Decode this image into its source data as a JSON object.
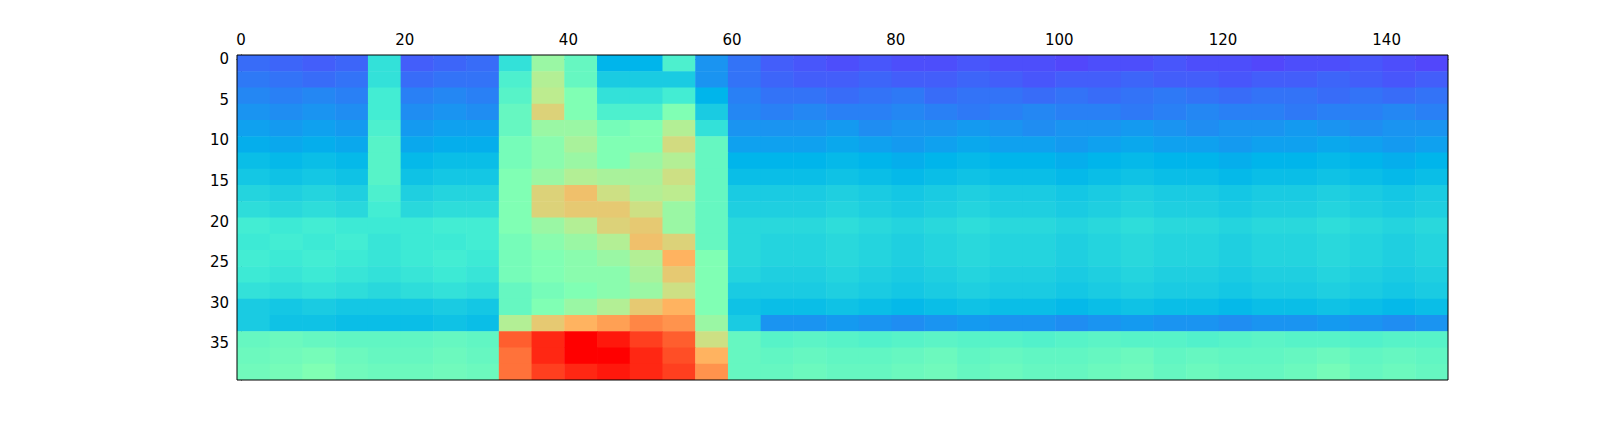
{
  "chart_data": {
    "type": "heatmap",
    "xlim": [
      -0.5,
      147.5
    ],
    "ylim": [
      39.5,
      -0.5
    ],
    "xticks": [
      0,
      20,
      40,
      60,
      80,
      100,
      120,
      140
    ],
    "yticks": [
      0,
      5,
      10,
      15,
      20,
      25,
      30,
      35
    ],
    "color_range": [
      0,
      1
    ],
    "x_edges": [
      -0.5,
      3.5,
      7.5,
      11.5,
      15.5,
      19.5,
      23.5,
      27.5,
      31.5,
      35.5,
      39.5,
      43.5,
      47.5,
      51.5,
      55.5,
      59.5,
      63.5,
      67.5,
      71.5,
      75.5,
      79.5,
      83.5,
      87.5,
      91.5,
      95.5,
      99.5,
      103.5,
      107.5,
      111.5,
      115.5,
      119.5,
      123.5,
      127.5,
      131.5,
      135.5,
      139.5,
      143.5,
      147.5
    ],
    "y_edges": [
      -0.5,
      1.5,
      3.5,
      5.5,
      7.5,
      9.5,
      11.5,
      13.5,
      15.5,
      17.5,
      19.5,
      21.5,
      23.5,
      25.5,
      27.5,
      29.5,
      31.5,
      33.5,
      35.5,
      37.5,
      39.5
    ],
    "cells": [
      [
        0.14,
        0.13,
        0.12,
        0.13,
        0.35,
        0.12,
        0.13,
        0.14,
        0.35,
        0.55,
        0.45,
        0.25,
        0.25,
        0.4,
        0.2,
        0.15,
        0.12,
        0.11,
        0.1,
        0.11,
        0.1,
        0.1,
        0.11,
        0.1,
        0.1,
        0.09,
        0.1,
        0.1,
        0.11,
        0.1,
        0.1,
        0.09,
        0.1,
        0.1,
        0.11,
        0.1,
        0.09
      ],
      [
        0.16,
        0.15,
        0.14,
        0.15,
        0.35,
        0.14,
        0.15,
        0.15,
        0.4,
        0.6,
        0.45,
        0.3,
        0.3,
        0.3,
        0.2,
        0.15,
        0.13,
        0.12,
        0.12,
        0.13,
        0.12,
        0.12,
        0.13,
        0.12,
        0.11,
        0.12,
        0.12,
        0.13,
        0.12,
        0.12,
        0.11,
        0.12,
        0.12,
        0.13,
        0.12,
        0.11,
        0.12
      ],
      [
        0.18,
        0.17,
        0.18,
        0.17,
        0.38,
        0.17,
        0.18,
        0.17,
        0.42,
        0.62,
        0.5,
        0.35,
        0.35,
        0.38,
        0.25,
        0.17,
        0.15,
        0.15,
        0.14,
        0.15,
        0.16,
        0.14,
        0.15,
        0.15,
        0.14,
        0.15,
        0.14,
        0.15,
        0.16,
        0.15,
        0.14,
        0.15,
        0.15,
        0.14,
        0.15,
        0.14,
        0.15
      ],
      [
        0.2,
        0.19,
        0.2,
        0.19,
        0.38,
        0.19,
        0.2,
        0.19,
        0.45,
        0.68,
        0.5,
        0.4,
        0.4,
        0.5,
        0.3,
        0.18,
        0.17,
        0.18,
        0.17,
        0.17,
        0.18,
        0.17,
        0.16,
        0.17,
        0.18,
        0.17,
        0.17,
        0.16,
        0.17,
        0.18,
        0.17,
        0.17,
        0.16,
        0.17,
        0.17,
        0.18,
        0.17
      ],
      [
        0.22,
        0.21,
        0.22,
        0.21,
        0.4,
        0.21,
        0.22,
        0.22,
        0.45,
        0.55,
        0.55,
        0.48,
        0.5,
        0.6,
        0.35,
        0.2,
        0.2,
        0.2,
        0.21,
        0.19,
        0.2,
        0.2,
        0.21,
        0.2,
        0.19,
        0.2,
        0.2,
        0.21,
        0.2,
        0.19,
        0.2,
        0.2,
        0.21,
        0.2,
        0.19,
        0.2,
        0.2
      ],
      [
        0.24,
        0.23,
        0.24,
        0.23,
        0.42,
        0.23,
        0.24,
        0.24,
        0.48,
        0.52,
        0.58,
        0.5,
        0.5,
        0.66,
        0.45,
        0.22,
        0.22,
        0.22,
        0.23,
        0.22,
        0.21,
        0.22,
        0.23,
        0.22,
        0.22,
        0.21,
        0.22,
        0.23,
        0.22,
        0.22,
        0.21,
        0.22,
        0.22,
        0.23,
        0.22,
        0.21,
        0.22
      ],
      [
        0.27,
        0.26,
        0.27,
        0.26,
        0.42,
        0.26,
        0.27,
        0.27,
        0.48,
        0.52,
        0.55,
        0.5,
        0.55,
        0.6,
        0.45,
        0.25,
        0.25,
        0.25,
        0.26,
        0.25,
        0.24,
        0.25,
        0.26,
        0.25,
        0.25,
        0.24,
        0.25,
        0.26,
        0.25,
        0.25,
        0.24,
        0.25,
        0.25,
        0.26,
        0.25,
        0.24,
        0.25
      ],
      [
        0.29,
        0.28,
        0.29,
        0.28,
        0.42,
        0.28,
        0.29,
        0.29,
        0.5,
        0.55,
        0.6,
        0.58,
        0.58,
        0.65,
        0.45,
        0.27,
        0.27,
        0.27,
        0.28,
        0.27,
        0.26,
        0.27,
        0.28,
        0.27,
        0.27,
        0.26,
        0.27,
        0.28,
        0.27,
        0.27,
        0.26,
        0.27,
        0.27,
        0.28,
        0.27,
        0.26,
        0.27
      ],
      [
        0.32,
        0.31,
        0.32,
        0.31,
        0.4,
        0.31,
        0.32,
        0.32,
        0.5,
        0.68,
        0.72,
        0.65,
        0.6,
        0.62,
        0.45,
        0.3,
        0.3,
        0.3,
        0.31,
        0.3,
        0.29,
        0.3,
        0.31,
        0.3,
        0.3,
        0.29,
        0.3,
        0.31,
        0.3,
        0.3,
        0.29,
        0.3,
        0.3,
        0.31,
        0.3,
        0.29,
        0.3
      ],
      [
        0.34,
        0.33,
        0.34,
        0.33,
        0.38,
        0.33,
        0.34,
        0.34,
        0.5,
        0.68,
        0.7,
        0.7,
        0.65,
        0.55,
        0.45,
        0.31,
        0.31,
        0.31,
        0.32,
        0.31,
        0.3,
        0.31,
        0.32,
        0.31,
        0.31,
        0.3,
        0.31,
        0.32,
        0.31,
        0.31,
        0.3,
        0.31,
        0.31,
        0.32,
        0.31,
        0.3,
        0.31
      ],
      [
        0.38,
        0.37,
        0.38,
        0.37,
        0.37,
        0.37,
        0.38,
        0.38,
        0.5,
        0.55,
        0.6,
        0.68,
        0.7,
        0.55,
        0.45,
        0.33,
        0.33,
        0.33,
        0.34,
        0.33,
        0.32,
        0.33,
        0.34,
        0.33,
        0.33,
        0.32,
        0.33,
        0.34,
        0.33,
        0.33,
        0.32,
        0.33,
        0.33,
        0.34,
        0.33,
        0.32,
        0.33
      ],
      [
        0.37,
        0.38,
        0.37,
        0.38,
        0.36,
        0.37,
        0.37,
        0.38,
        0.48,
        0.52,
        0.55,
        0.6,
        0.72,
        0.68,
        0.45,
        0.33,
        0.32,
        0.32,
        0.33,
        0.32,
        0.31,
        0.32,
        0.33,
        0.32,
        0.32,
        0.31,
        0.32,
        0.33,
        0.32,
        0.32,
        0.31,
        0.32,
        0.32,
        0.33,
        0.32,
        0.31,
        0.32
      ],
      [
        0.38,
        0.37,
        0.38,
        0.37,
        0.36,
        0.37,
        0.38,
        0.37,
        0.48,
        0.5,
        0.52,
        0.55,
        0.6,
        0.75,
        0.5,
        0.33,
        0.32,
        0.32,
        0.33,
        0.32,
        0.31,
        0.32,
        0.33,
        0.32,
        0.32,
        0.31,
        0.32,
        0.33,
        0.32,
        0.32,
        0.31,
        0.32,
        0.32,
        0.33,
        0.32,
        0.31,
        0.32
      ],
      [
        0.37,
        0.36,
        0.37,
        0.36,
        0.35,
        0.36,
        0.37,
        0.36,
        0.48,
        0.5,
        0.52,
        0.52,
        0.58,
        0.7,
        0.5,
        0.32,
        0.31,
        0.31,
        0.32,
        0.31,
        0.3,
        0.31,
        0.32,
        0.31,
        0.31,
        0.3,
        0.31,
        0.32,
        0.31,
        0.31,
        0.3,
        0.31,
        0.31,
        0.32,
        0.31,
        0.3,
        0.31
      ],
      [
        0.35,
        0.34,
        0.35,
        0.34,
        0.33,
        0.34,
        0.35,
        0.34,
        0.45,
        0.48,
        0.5,
        0.52,
        0.55,
        0.65,
        0.5,
        0.3,
        0.3,
        0.3,
        0.31,
        0.3,
        0.29,
        0.3,
        0.31,
        0.3,
        0.3,
        0.29,
        0.3,
        0.31,
        0.3,
        0.3,
        0.29,
        0.3,
        0.3,
        0.31,
        0.3,
        0.29,
        0.3
      ],
      [
        0.3,
        0.29,
        0.3,
        0.29,
        0.29,
        0.29,
        0.3,
        0.29,
        0.45,
        0.5,
        0.55,
        0.6,
        0.7,
        0.75,
        0.5,
        0.28,
        0.27,
        0.27,
        0.28,
        0.27,
        0.26,
        0.27,
        0.28,
        0.27,
        0.27,
        0.26,
        0.27,
        0.28,
        0.27,
        0.27,
        0.26,
        0.27,
        0.27,
        0.28,
        0.27,
        0.26,
        0.27
      ],
      [
        0.3,
        0.28,
        0.28,
        0.27,
        0.27,
        0.27,
        0.28,
        0.27,
        0.6,
        0.7,
        0.75,
        0.78,
        0.82,
        0.8,
        0.55,
        0.3,
        0.2,
        0.2,
        0.21,
        0.2,
        0.19,
        0.2,
        0.21,
        0.2,
        0.2,
        0.19,
        0.2,
        0.21,
        0.2,
        0.2,
        0.19,
        0.2,
        0.2,
        0.21,
        0.2,
        0.19,
        0.2
      ],
      [
        0.45,
        0.46,
        0.45,
        0.44,
        0.44,
        0.44,
        0.45,
        0.44,
        0.88,
        0.95,
        1.0,
        0.97,
        0.92,
        0.88,
        0.65,
        0.45,
        0.42,
        0.43,
        0.42,
        0.41,
        0.42,
        0.43,
        0.42,
        0.42,
        0.41,
        0.42,
        0.43,
        0.42,
        0.42,
        0.41,
        0.42,
        0.43,
        0.42,
        0.42,
        0.41,
        0.42,
        0.42
      ],
      [
        0.46,
        0.47,
        0.48,
        0.46,
        0.45,
        0.45,
        0.46,
        0.45,
        0.85,
        0.95,
        1.0,
        1.0,
        0.95,
        0.9,
        0.75,
        0.45,
        0.44,
        0.45,
        0.44,
        0.44,
        0.45,
        0.46,
        0.44,
        0.45,
        0.44,
        0.44,
        0.45,
        0.46,
        0.44,
        0.45,
        0.44,
        0.44,
        0.45,
        0.46,
        0.44,
        0.45,
        0.44
      ],
      [
        0.47,
        0.48,
        0.5,
        0.47,
        0.46,
        0.46,
        0.47,
        0.46,
        0.85,
        0.92,
        0.95,
        0.97,
        0.95,
        0.92,
        0.8,
        0.45,
        0.45,
        0.46,
        0.45,
        0.45,
        0.46,
        0.47,
        0.45,
        0.46,
        0.45,
        0.45,
        0.46,
        0.47,
        0.45,
        0.46,
        0.45,
        0.45,
        0.46,
        0.48,
        0.45,
        0.46,
        0.45
      ]
    ]
  }
}
